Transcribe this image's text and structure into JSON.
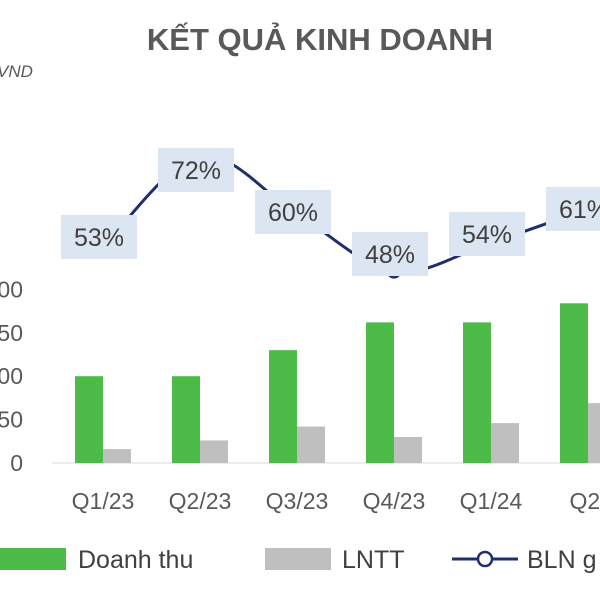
{
  "chart_data": {
    "type": "bar",
    "title": "KẾT QUẢ KINH DOANH",
    "unit_label": "VND",
    "categories": [
      "Q1/23",
      "Q2/23",
      "Q3/23",
      "Q4/23",
      "Q1/24",
      "Q2/"
    ],
    "y_ticks": [
      "0",
      "50",
      "00",
      "50",
      "00"
    ],
    "ylim": [
      0,
      200
    ],
    "series": [
      {
        "name": "Doanh thu",
        "kind": "bar",
        "color": "#4dbb47",
        "values": [
          100,
          100,
          130,
          162,
          162,
          184
        ]
      },
      {
        "name": "LNTT",
        "kind": "bar",
        "color": "#bfbfbf",
        "values": [
          16,
          26,
          42,
          30,
          46,
          69
        ]
      },
      {
        "name": "BLN g",
        "kind": "line",
        "color": "#1f2e6e",
        "values": [
          53,
          72,
          60,
          48,
          54,
          61
        ],
        "labels": [
          "53%",
          "72%",
          "60%",
          "48%",
          "54%",
          "61%"
        ]
      }
    ],
    "line_label_bg": "#dce6f2",
    "grid": false,
    "legend": "bottom"
  }
}
